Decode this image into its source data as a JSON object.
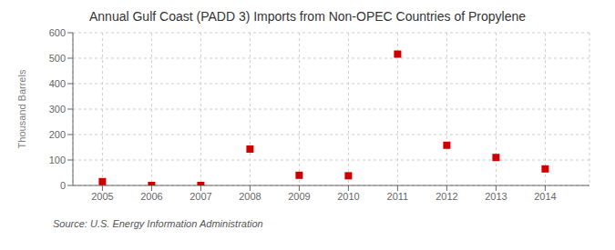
{
  "chart_data": {
    "type": "scatter",
    "title": "Annual Gulf Coast (PADD 3) Imports from Non-OPEC Countries of Propylene",
    "ylabel": "Thousand Barrels",
    "annotations": [
      "Source: U.S. Energy Information Administration"
    ],
    "x": [
      2005,
      2006,
      2007,
      2008,
      2009,
      2010,
      2011,
      2012,
      2013,
      2014
    ],
    "values": [
      15,
      0,
      0,
      143,
      40,
      38,
      516,
      158,
      110,
      65
    ],
    "xlim": [
      2004.4,
      2014.9
    ],
    "xticks": [
      2005,
      2006,
      2007,
      2008,
      2009,
      2010,
      2011,
      2012,
      2013,
      2014
    ],
    "ylim": [
      0,
      600
    ],
    "yticks": [
      0,
      100,
      200,
      300,
      400,
      500,
      600
    ],
    "color": "#cc0000",
    "marker": "square",
    "grid": true
  }
}
